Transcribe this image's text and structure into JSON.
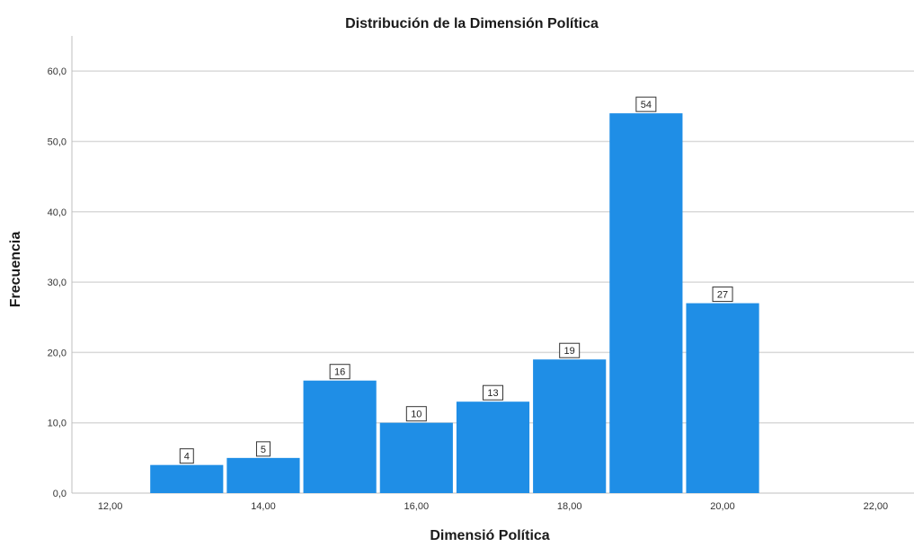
{
  "chart_data": {
    "type": "bar",
    "title": "Distribución de la Dimensión Política",
    "xlabel": "Dimensió Política",
    "ylabel": "Frecuencia",
    "bin_width": 1,
    "bin_starts": [
      12.5,
      13.5,
      14.5,
      15.5,
      16.5,
      17.5,
      18.5,
      19.5
    ],
    "values": [
      4,
      5,
      16,
      10,
      13,
      19,
      54,
      27
    ],
    "data_labels": [
      "4",
      "5",
      "16",
      "10",
      "13",
      "19",
      "54",
      "27"
    ],
    "xlim": [
      11.5,
      22.5
    ],
    "ylim": [
      0,
      65
    ],
    "x_ticks": [
      12,
      14,
      16,
      18,
      20,
      22
    ],
    "x_tick_labels": [
      "12,00",
      "14,00",
      "16,00",
      "18,00",
      "20,00",
      "22,00"
    ],
    "y_ticks": [
      0,
      10,
      20,
      30,
      40,
      50,
      60
    ],
    "y_tick_labels": [
      "0,0",
      "10,0",
      "20,0",
      "30,0",
      "40,0",
      "50,0",
      "60,0"
    ],
    "grid": true,
    "bar_color": "#1f8ee6",
    "grid_color": "#d9d9d9"
  }
}
